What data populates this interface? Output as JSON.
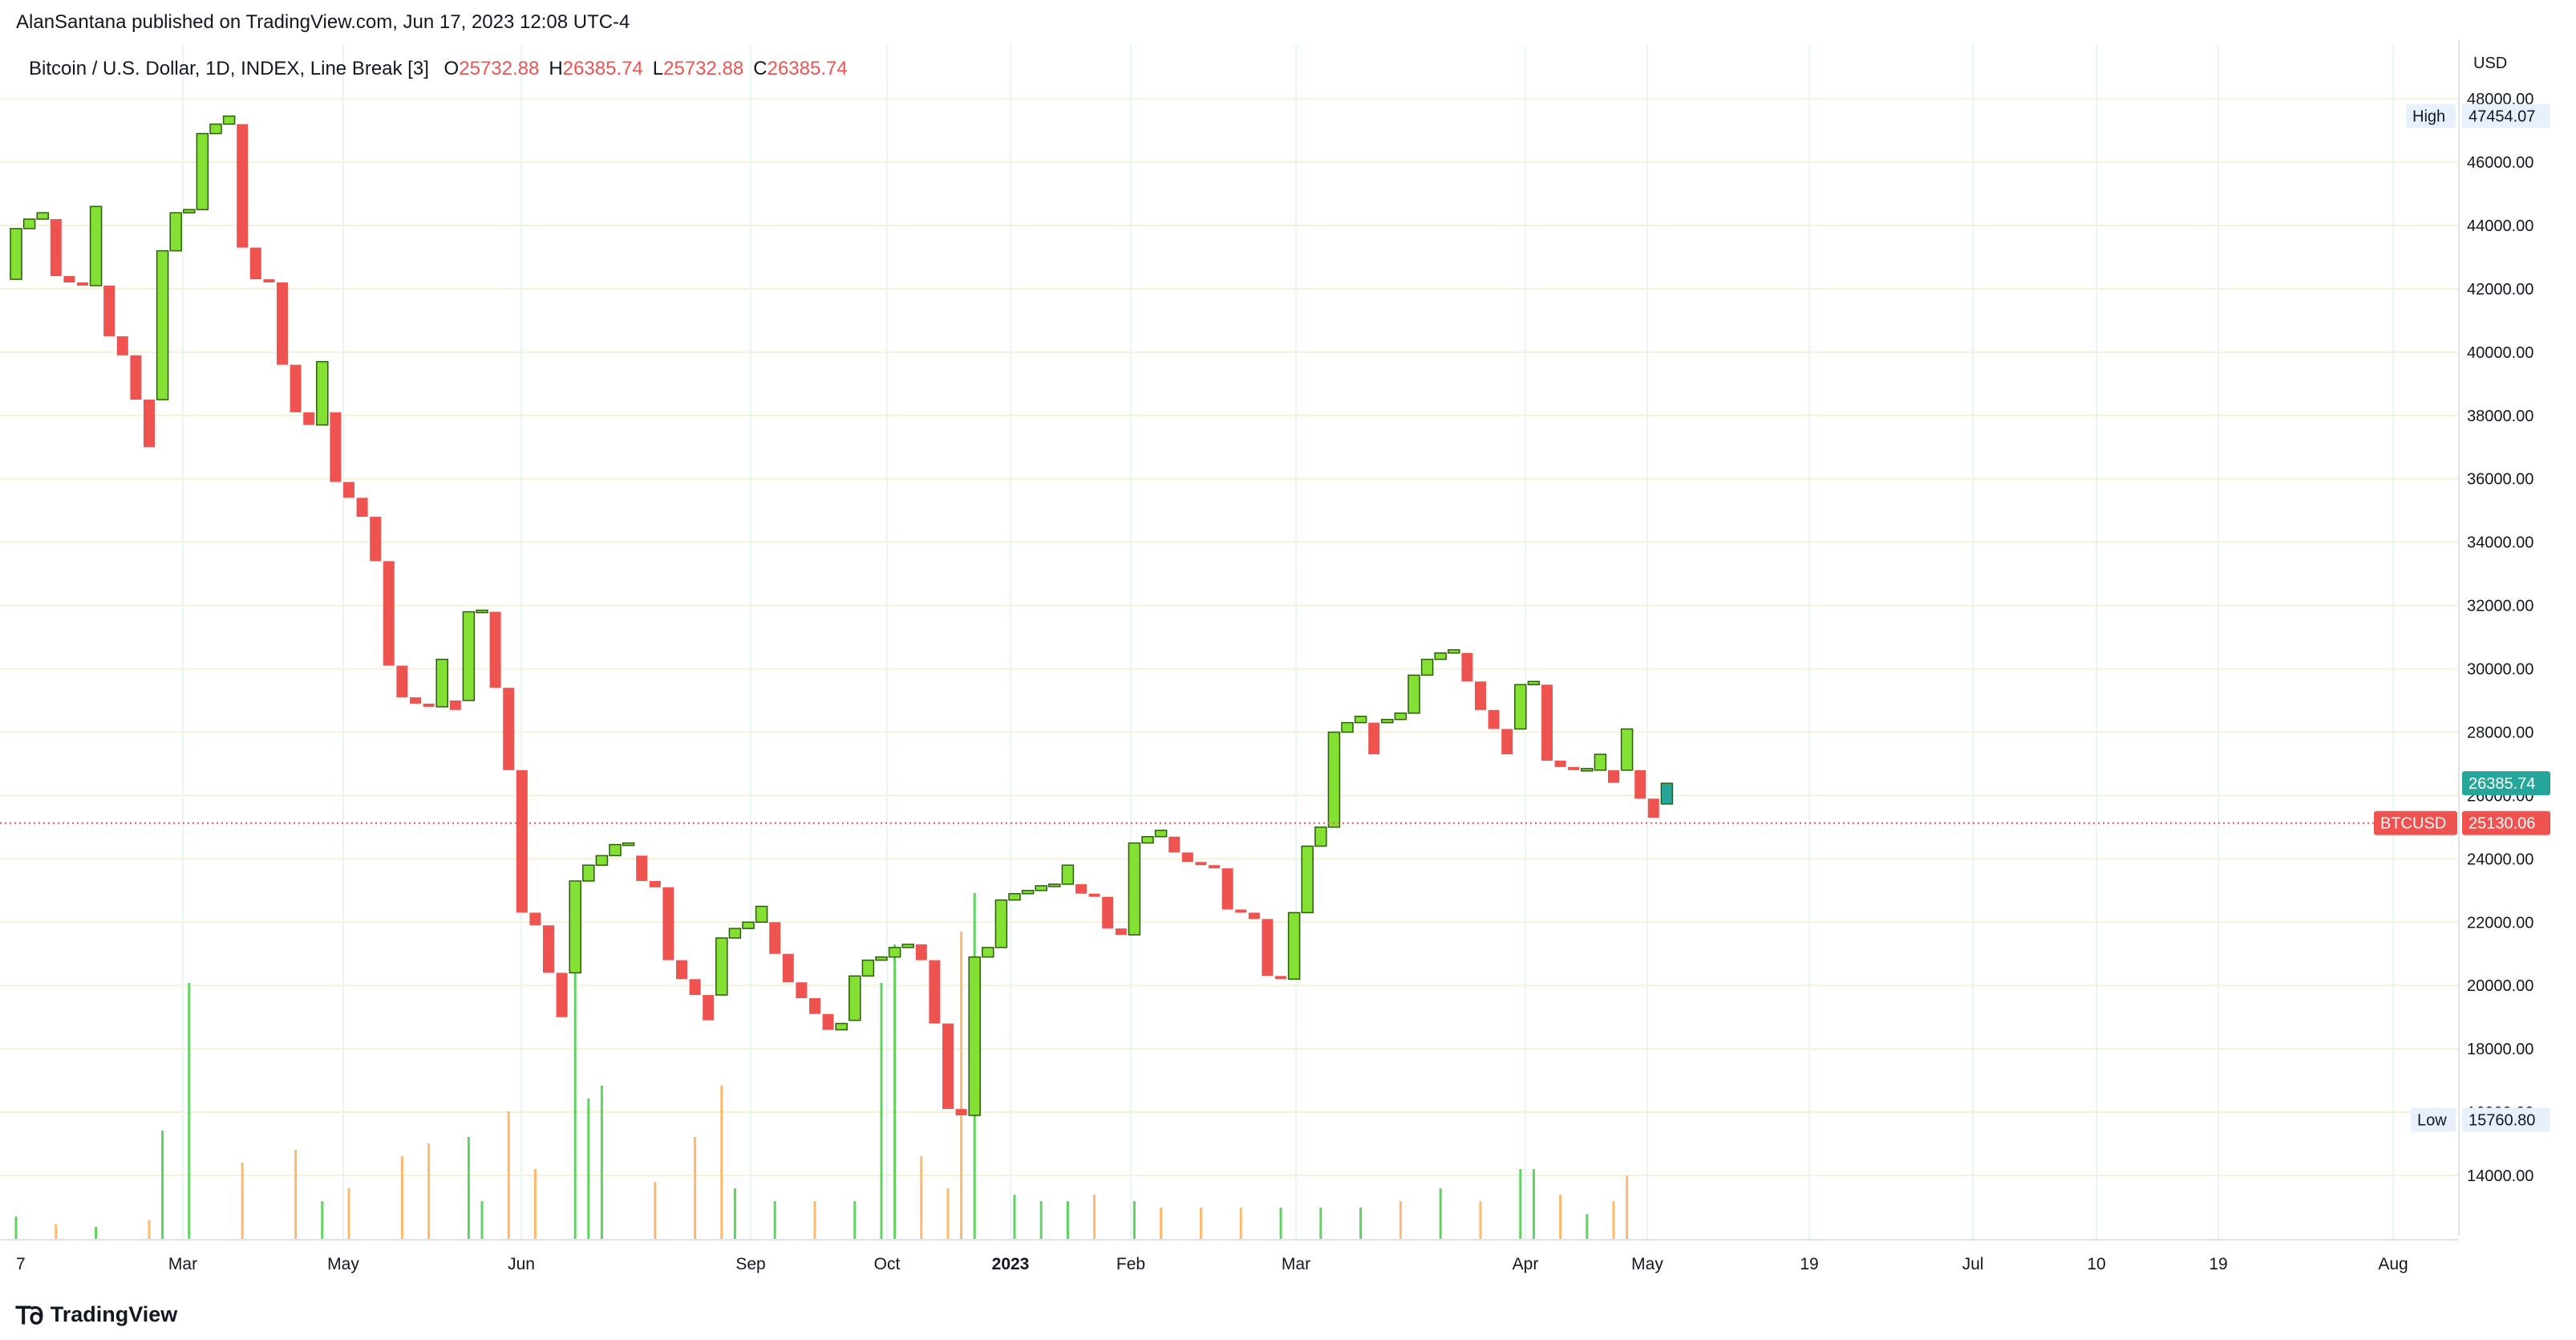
{
  "header": {
    "publisher_line": "AlanSantana published on TradingView.com, Jun 17, 2023 12:08 UTC-4"
  },
  "footer": {
    "brand": "TradingView"
  },
  "chart_data": {
    "type": "line_break",
    "symbol_line": "Bitcoin / U.S. Dollar, 1D, INDEX, Line Break [3]",
    "ohlc": [
      {
        "label": "O",
        "value": "25732.88"
      },
      {
        "label": "H",
        "value": "26385.74"
      },
      {
        "label": "L",
        "value": "25732.88"
      },
      {
        "label": "C",
        "value": "26385.74"
      }
    ],
    "currency": "USD",
    "ylim": [
      12100,
      49700
    ],
    "y_ticks": [
      "48000.00",
      "46000.00",
      "44000.00",
      "42000.00",
      "40000.00",
      "38000.00",
      "36000.00",
      "34000.00",
      "32000.00",
      "30000.00",
      "28000.00",
      "26000.00",
      "24000.00",
      "22000.00",
      "20000.00",
      "18000.00",
      "16000.00",
      "14000.00"
    ],
    "x_ticks": [
      "7",
      "Mar",
      "May",
      "Jun",
      "Sep",
      "Oct",
      "2023",
      "Feb",
      "Mar",
      "Apr",
      "May",
      "19",
      "Jul",
      "10",
      "19",
      "Aug"
    ],
    "x_tick_bold": "2023",
    "high": {
      "label": "High",
      "value": "47454.07"
    },
    "low": {
      "label": "Low",
      "value": "15760.80"
    },
    "last_price": {
      "value": "26385.74"
    },
    "price_line": {
      "label": "BTCUSD",
      "value": "25130.06"
    },
    "colors": {
      "up": "#84e032",
      "down": "#ef5350",
      "last": "#26a69a",
      "vol_up": "#5fd35f",
      "vol_down": "#ffb86c",
      "price_line": "#ef5350"
    },
    "bricks": [
      {
        "o": 42300,
        "c": 43900
      },
      {
        "o": 43900,
        "c": 44200
      },
      {
        "o": 44200,
        "c": 44400
      },
      {
        "o": 44200,
        "c": 42400
      },
      {
        "o": 42400,
        "c": 42200
      },
      {
        "o": 42200,
        "c": 42100
      },
      {
        "o": 42100,
        "c": 44600
      },
      {
        "o": 42100,
        "c": 40500
      },
      {
        "o": 40500,
        "c": 39900
      },
      {
        "o": 39900,
        "c": 38500
      },
      {
        "o": 38500,
        "c": 37000
      },
      {
        "o": 38500,
        "c": 43200
      },
      {
        "o": 43200,
        "c": 44400
      },
      {
        "o": 44400,
        "c": 44500
      },
      {
        "o": 44500,
        "c": 46900
      },
      {
        "o": 46900,
        "c": 47200
      },
      {
        "o": 47200,
        "c": 47454
      },
      {
        "o": 47200,
        "c": 43300
      },
      {
        "o": 43300,
        "c": 42300
      },
      {
        "o": 42300,
        "c": 42200
      },
      {
        "o": 42200,
        "c": 39600
      },
      {
        "o": 39600,
        "c": 38100
      },
      {
        "o": 38100,
        "c": 37700
      },
      {
        "o": 37700,
        "c": 39700
      },
      {
        "o": 38100,
        "c": 35900
      },
      {
        "o": 35900,
        "c": 35400
      },
      {
        "o": 35400,
        "c": 34800
      },
      {
        "o": 34800,
        "c": 33400
      },
      {
        "o": 33400,
        "c": 30100
      },
      {
        "o": 30100,
        "c": 29100
      },
      {
        "o": 29100,
        "c": 28900
      },
      {
        "o": 28900,
        "c": 28800
      },
      {
        "o": 28800,
        "c": 30300
      },
      {
        "o": 29000,
        "c": 28700
      },
      {
        "o": 29000,
        "c": 31800
      },
      {
        "o": 31800,
        "c": 31850
      },
      {
        "o": 31800,
        "c": 29400
      },
      {
        "o": 29400,
        "c": 26800
      },
      {
        "o": 26800,
        "c": 22300
      },
      {
        "o": 22300,
        "c": 21900
      },
      {
        "o": 21900,
        "c": 20400
      },
      {
        "o": 20400,
        "c": 19000
      },
      {
        "o": 20400,
        "c": 23300
      },
      {
        "o": 23300,
        "c": 23800
      },
      {
        "o": 23800,
        "c": 24100
      },
      {
        "o": 24100,
        "c": 24450
      },
      {
        "o": 24450,
        "c": 24500
      },
      {
        "o": 24100,
        "c": 23300
      },
      {
        "o": 23300,
        "c": 23100
      },
      {
        "o": 23100,
        "c": 20800
      },
      {
        "o": 20800,
        "c": 20200
      },
      {
        "o": 20200,
        "c": 19700
      },
      {
        "o": 19700,
        "c": 18900
      },
      {
        "o": 19700,
        "c": 21500
      },
      {
        "o": 21500,
        "c": 21800
      },
      {
        "o": 21800,
        "c": 22000
      },
      {
        "o": 22000,
        "c": 22500
      },
      {
        "o": 22000,
        "c": 21000
      },
      {
        "o": 21000,
        "c": 20100
      },
      {
        "o": 20100,
        "c": 19600
      },
      {
        "o": 19600,
        "c": 19100
      },
      {
        "o": 19100,
        "c": 18600
      },
      {
        "o": 18600,
        "c": 18800
      },
      {
        "o": 18900,
        "c": 20300
      },
      {
        "o": 20300,
        "c": 20800
      },
      {
        "o": 20800,
        "c": 20900
      },
      {
        "o": 20900,
        "c": 21200
      },
      {
        "o": 21200,
        "c": 21300
      },
      {
        "o": 21300,
        "c": 20800
      },
      {
        "o": 20800,
        "c": 18800
      },
      {
        "o": 18800,
        "c": 16100
      },
      {
        "o": 16100,
        "c": 15900
      },
      {
        "o": 15900,
        "c": 20900
      },
      {
        "o": 20900,
        "c": 21200
      },
      {
        "o": 21200,
        "c": 22700
      },
      {
        "o": 22700,
        "c": 22900
      },
      {
        "o": 22900,
        "c": 23000
      },
      {
        "o": 23000,
        "c": 23150
      },
      {
        "o": 23150,
        "c": 23200
      },
      {
        "o": 23200,
        "c": 23800
      },
      {
        "o": 23200,
        "c": 22900
      },
      {
        "o": 22900,
        "c": 22800
      },
      {
        "o": 22800,
        "c": 21800
      },
      {
        "o": 21800,
        "c": 21600
      },
      {
        "o": 21600,
        "c": 24500
      },
      {
        "o": 24500,
        "c": 24700
      },
      {
        "o": 24700,
        "c": 24900
      },
      {
        "o": 24700,
        "c": 24200
      },
      {
        "o": 24200,
        "c": 23900
      },
      {
        "o": 23900,
        "c": 23800
      },
      {
        "o": 23800,
        "c": 23700
      },
      {
        "o": 23700,
        "c": 22400
      },
      {
        "o": 22400,
        "c": 22300
      },
      {
        "o": 22300,
        "c": 22100
      },
      {
        "o": 22100,
        "c": 20300
      },
      {
        "o": 20300,
        "c": 20200
      },
      {
        "o": 20200,
        "c": 22300
      },
      {
        "o": 22300,
        "c": 24400
      },
      {
        "o": 24400,
        "c": 25000
      },
      {
        "o": 25000,
        "c": 28000
      },
      {
        "o": 28000,
        "c": 28300
      },
      {
        "o": 28300,
        "c": 28500
      },
      {
        "o": 28300,
        "c": 27300
      },
      {
        "o": 28300,
        "c": 28400
      },
      {
        "o": 28400,
        "c": 28600
      },
      {
        "o": 28600,
        "c": 29800
      },
      {
        "o": 29800,
        "c": 30300
      },
      {
        "o": 30300,
        "c": 30500
      },
      {
        "o": 30500,
        "c": 30600
      },
      {
        "o": 30500,
        "c": 29600
      },
      {
        "o": 29600,
        "c": 28700
      },
      {
        "o": 28700,
        "c": 28100
      },
      {
        "o": 28100,
        "c": 27300
      },
      {
        "o": 28100,
        "c": 29500
      },
      {
        "o": 29500,
        "c": 29600
      },
      {
        "o": 29500,
        "c": 27100
      },
      {
        "o": 27100,
        "c": 26900
      },
      {
        "o": 26900,
        "c": 26800
      },
      {
        "o": 26800,
        "c": 26850
      },
      {
        "o": 26800,
        "c": 27300
      },
      {
        "o": 26800,
        "c": 26400
      },
      {
        "o": 26800,
        "c": 28100
      },
      {
        "o": 26800,
        "c": 25900
      },
      {
        "o": 25900,
        "c": 25300
      },
      {
        "o": 25732.88,
        "c": 26385.74
      }
    ],
    "volumes": [
      {
        "i": 0,
        "v": 0.18,
        "up": true
      },
      {
        "i": 3,
        "v": 0.12,
        "up": false
      },
      {
        "i": 6,
        "v": 0.1,
        "up": true
      },
      {
        "i": 10,
        "v": 0.15,
        "up": false
      },
      {
        "i": 11,
        "v": 0.85,
        "up": true
      },
      {
        "i": 13,
        "v": 2.0,
        "up": true
      },
      {
        "i": 17,
        "v": 0.6,
        "up": false
      },
      {
        "i": 21,
        "v": 0.7,
        "up": false
      },
      {
        "i": 23,
        "v": 0.3,
        "up": true
      },
      {
        "i": 25,
        "v": 0.4,
        "up": false
      },
      {
        "i": 29,
        "v": 0.65,
        "up": false
      },
      {
        "i": 31,
        "v": 0.75,
        "up": false
      },
      {
        "i": 34,
        "v": 0.8,
        "up": true
      },
      {
        "i": 35,
        "v": 0.3,
        "up": true
      },
      {
        "i": 37,
        "v": 1.0,
        "up": false
      },
      {
        "i": 39,
        "v": 0.55,
        "up": false
      },
      {
        "i": 42,
        "v": 2.6,
        "up": true
      },
      {
        "i": 43,
        "v": 1.1,
        "up": true
      },
      {
        "i": 44,
        "v": 1.2,
        "up": true
      },
      {
        "i": 48,
        "v": 0.45,
        "up": false
      },
      {
        "i": 51,
        "v": 0.8,
        "up": false
      },
      {
        "i": 53,
        "v": 1.2,
        "up": false
      },
      {
        "i": 54,
        "v": 0.4,
        "up": true
      },
      {
        "i": 57,
        "v": 0.3,
        "up": true
      },
      {
        "i": 60,
        "v": 0.3,
        "up": false
      },
      {
        "i": 63,
        "v": 0.3,
        "up": true
      },
      {
        "i": 65,
        "v": 2.0,
        "up": true
      },
      {
        "i": 66,
        "v": 2.3,
        "up": true
      },
      {
        "i": 68,
        "v": 0.65,
        "up": false
      },
      {
        "i": 70,
        "v": 0.4,
        "up": false
      },
      {
        "i": 71,
        "v": 2.4,
        "up": false
      },
      {
        "i": 72,
        "v": 2.7,
        "up": true
      },
      {
        "i": 75,
        "v": 0.35,
        "up": true
      },
      {
        "i": 77,
        "v": 0.3,
        "up": true
      },
      {
        "i": 79,
        "v": 0.3,
        "up": true
      },
      {
        "i": 81,
        "v": 0.35,
        "up": false
      },
      {
        "i": 84,
        "v": 0.3,
        "up": true
      },
      {
        "i": 86,
        "v": 0.25,
        "up": false
      },
      {
        "i": 89,
        "v": 0.25,
        "up": false
      },
      {
        "i": 92,
        "v": 0.25,
        "up": false
      },
      {
        "i": 95,
        "v": 0.25,
        "up": true
      },
      {
        "i": 98,
        "v": 0.25,
        "up": true
      },
      {
        "i": 101,
        "v": 0.25,
        "up": true
      },
      {
        "i": 104,
        "v": 0.3,
        "up": false
      },
      {
        "i": 107,
        "v": 0.4,
        "up": true
      },
      {
        "i": 110,
        "v": 0.3,
        "up": false
      },
      {
        "i": 113,
        "v": 0.55,
        "up": true
      },
      {
        "i": 114,
        "v": 0.55,
        "up": true
      },
      {
        "i": 116,
        "v": 0.35,
        "up": false
      },
      {
        "i": 118,
        "v": 0.2,
        "up": true
      },
      {
        "i": 120,
        "v": 0.3,
        "up": false
      },
      {
        "i": 121,
        "v": 0.5,
        "up": false
      }
    ]
  }
}
